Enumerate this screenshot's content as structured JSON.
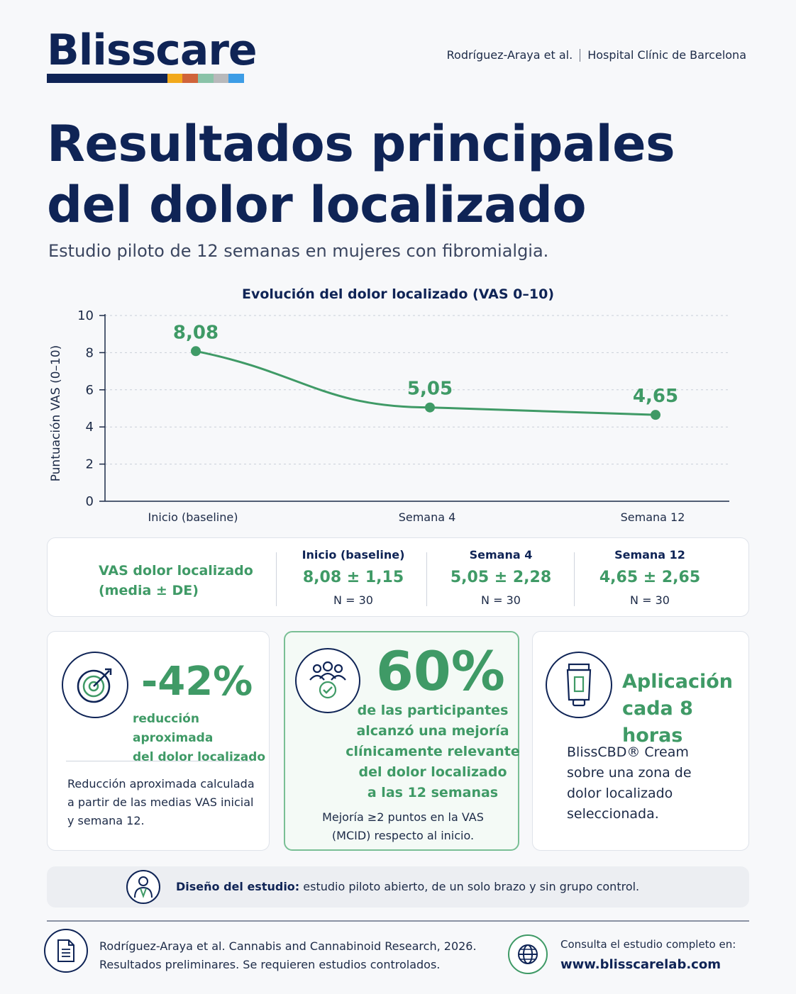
{
  "brand": {
    "name": "Blisscare",
    "bar_colors": [
      "#0f2456",
      "#0f2456",
      "#0f2456",
      "#0f2456",
      "#0f2456",
      "#f2a91b",
      "#d0643a",
      "#8ac3a8",
      "#b8b9bb",
      "#3d9de6"
    ]
  },
  "header": {
    "authors": "Rodríguez-Araya et al.",
    "institution": "Hospital Clínic de Barcelona"
  },
  "title_line1": "Resultados principales",
  "title_line2": "del dolor localizado",
  "subtitle": "Estudio piloto de 12 semanas en mujeres con fibromialgia.",
  "chart_data": {
    "type": "line",
    "title": "Evolución del dolor localizado (VAS 0–10)",
    "ylabel": "Puntuación VAS (0–10)",
    "xlabel": "",
    "categories": [
      "Inicio (baseline)",
      "Semana 4",
      "Semana 12"
    ],
    "series": [
      {
        "values": [
          8.08,
          5.05,
          4.65
        ],
        "labels": [
          "8,08",
          "5,05",
          "4,65"
        ],
        "color": "#3f9a66"
      }
    ],
    "ylim": [
      0,
      10
    ],
    "yticks": [
      0,
      2,
      4,
      6,
      8,
      10
    ],
    "grid": true
  },
  "table": {
    "row_label_1": "VAS dolor localizado",
    "row_label_2": "(media ± DE)",
    "columns": [
      {
        "header": "Inicio (baseline)",
        "value": "8,08 ± 1,15",
        "n": "N = 30"
      },
      {
        "header": "Semana 4",
        "value": "5,05 ± 2,28",
        "n": "N = 30"
      },
      {
        "header": "Semana 12",
        "value": "4,65 ± 2,65",
        "n": "N = 30"
      }
    ]
  },
  "cards": {
    "reduction": {
      "big": "-42%",
      "desc_1": "reducción aproximada",
      "desc_2": "del dolor localizado",
      "note_1": "Reducción aproximada calculada",
      "note_2": "a partir de las medias VAS inicial",
      "note_3": "y semana 12.",
      "icon": "target-icon"
    },
    "responders": {
      "big": "60%",
      "desc_1": "de las participantes",
      "desc_2": "alcanzó una mejoría",
      "desc_3": "clínicamente relevante",
      "desc_4": "del dolor localizado",
      "desc_5": "a las 12 semanas",
      "note_1": "Mejoría ≥2 puntos en la VAS",
      "note_2": "(MCID) respecto al inicio.",
      "icon": "group-check-icon"
    },
    "application": {
      "big_1": "Aplicación",
      "big_2": "cada 8 horas",
      "note_1": "BlissCBD® Cream",
      "note_2": "sobre una zona de",
      "note_3": "dolor localizado",
      "note_4": "seleccionada.",
      "icon": "cream-tube-icon"
    }
  },
  "design": {
    "label": "Diseño del estudio:",
    "text": " estudio piloto abierto, de un solo brazo y sin grupo control.",
    "icon": "researcher-icon"
  },
  "footer": {
    "citation_1": "Rodríguez-Araya et al. Cannabis and Cannabinoid Research, 2026.",
    "citation_2": "Resultados preliminares. Se requieren estudios controlados.",
    "web_label": "Consulta el estudio completo en:",
    "url": "www.blisscarelab.com"
  }
}
